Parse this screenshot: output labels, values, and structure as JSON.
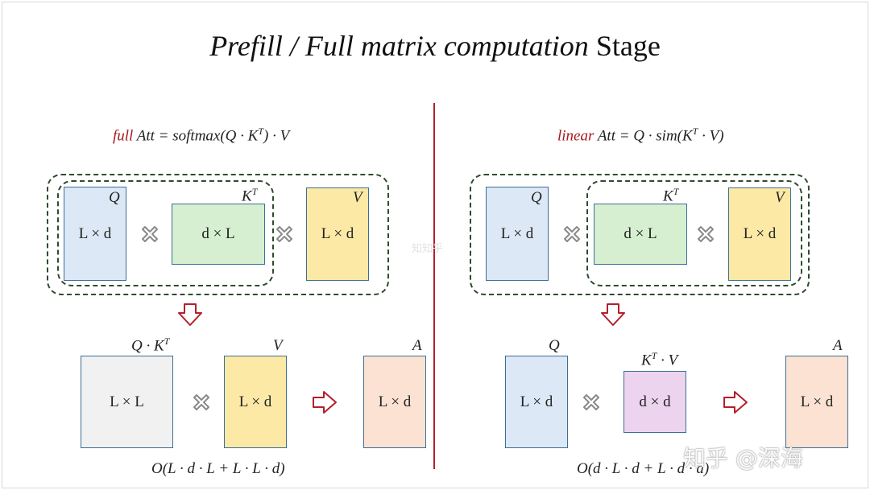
{
  "title": {
    "italic": "Prefill / Full matrix computation",
    "plain": "Stage"
  },
  "left": {
    "formula": {
      "kind": "full",
      "expr": "Att = softmax(Q · K",
      "sup": "T",
      "tail": ") · V"
    },
    "top_matrices": {
      "q": {
        "name": "Q",
        "dims": "L × d"
      },
      "kt": {
        "name": "K",
        "sup": "T",
        "dims": "d × L"
      },
      "v": {
        "name": "V",
        "dims": "L × d"
      }
    },
    "bottom_matrices": {
      "qk": {
        "name": "Q · K",
        "sup": "T",
        "dims": "L × L"
      },
      "v": {
        "name": "V",
        "dims": "L × d"
      },
      "a": {
        "name": "A",
        "dims": "L × d"
      }
    },
    "complexity": "O(L · d · L + L · L · d)"
  },
  "right": {
    "formula": {
      "kind": "linear",
      "expr": "Att = Q · sim(K",
      "sup": "T",
      "tail": " · V)"
    },
    "top_matrices": {
      "q": {
        "name": "Q",
        "dims": "L × d"
      },
      "kt": {
        "name": "K",
        "sup": "T",
        "dims": "d × L"
      },
      "v": {
        "name": "V",
        "dims": "L × d"
      }
    },
    "bottom_matrices": {
      "q": {
        "name": "Q",
        "dims": "L × d"
      },
      "ktv": {
        "name": "K",
        "sup": "T",
        "tail": " · V",
        "dims": "d × d"
      },
      "a": {
        "name": "A",
        "dims": "L × d"
      }
    },
    "complexity": "O(d · L · d + L · d · d)"
  },
  "watermark": {
    "main": "知乎 @深海",
    "small": "知知乎"
  },
  "colors": {
    "accent_red": "#a8181e",
    "blue": "#dce8f5",
    "green": "#d6efd0",
    "yellow": "#fde9a6",
    "gray": "#f1f1f1",
    "peach": "#fbe2d2",
    "pink": "#ecd3ee",
    "border": "#3d6f95",
    "dash": "#2f4a2f"
  },
  "icons": {
    "multiply": "multiply-cross-icon",
    "arrow_down": "arrow-down-icon",
    "arrow_right": "arrow-right-icon"
  }
}
